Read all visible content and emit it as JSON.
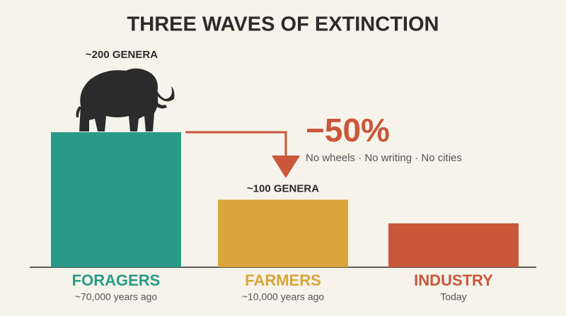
{
  "chart_data": {
    "type": "bar",
    "title": "THREE WAVES OF EXTINCTION",
    "categories": [
      "FORAGERS",
      "FARMERS",
      "INDUSTRY"
    ],
    "category_notes": [
      "~70,000 years ago",
      "~10,000 years ago",
      "Today"
    ],
    "values": [
      200,
      100,
      65
    ],
    "value_labels": [
      "~200 GENERA",
      "~100 GENERA",
      null
    ],
    "colors": [
      "#2a9a88",
      "#d9a53a",
      "#c9573a"
    ],
    "ylim": [
      0,
      200
    ],
    "annotation": {
      "title": "−50%",
      "text": "No wheels · No writing · No cities"
    }
  }
}
